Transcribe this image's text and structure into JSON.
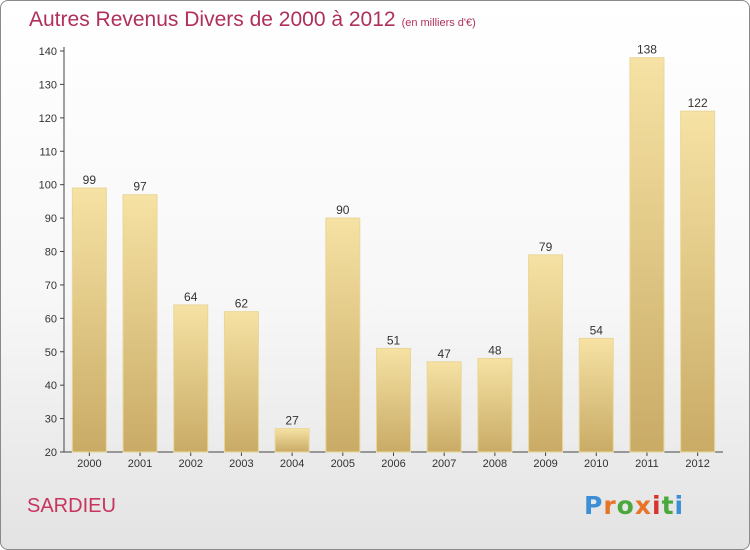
{
  "header": {
    "title": "Autres Revenus Divers de 2000 à 2012",
    "unit": "(en milliers d'€)"
  },
  "footer": {
    "place": "SARDIEU",
    "logo_text": "Proxiti",
    "logo_colors": [
      "#3a8fd6",
      "#e8742a",
      "#4aa83c",
      "#e8742a",
      "#d6342e",
      "#4aa83c",
      "#3a8fd6"
    ]
  },
  "colors": {
    "title": "#b0305a",
    "bar_light": "#f3dd9c",
    "bar_dark": "#cdb06a"
  },
  "chart_data": {
    "type": "bar",
    "categories": [
      "2000",
      "2001",
      "2002",
      "2003",
      "2004",
      "2005",
      "2006",
      "2007",
      "2008",
      "2009",
      "2010",
      "2011",
      "2012"
    ],
    "values": [
      99,
      97,
      64,
      62,
      27,
      90,
      51,
      47,
      48,
      79,
      54,
      138,
      122
    ],
    "title": "Autres Revenus Divers de 2000 à 2012",
    "xlabel": "",
    "ylabel": "",
    "ylim": [
      20,
      140
    ],
    "yticks": [
      20,
      30,
      40,
      50,
      60,
      70,
      80,
      90,
      100,
      110,
      120,
      130,
      140
    ],
    "grid": false,
    "legend": "none"
  }
}
